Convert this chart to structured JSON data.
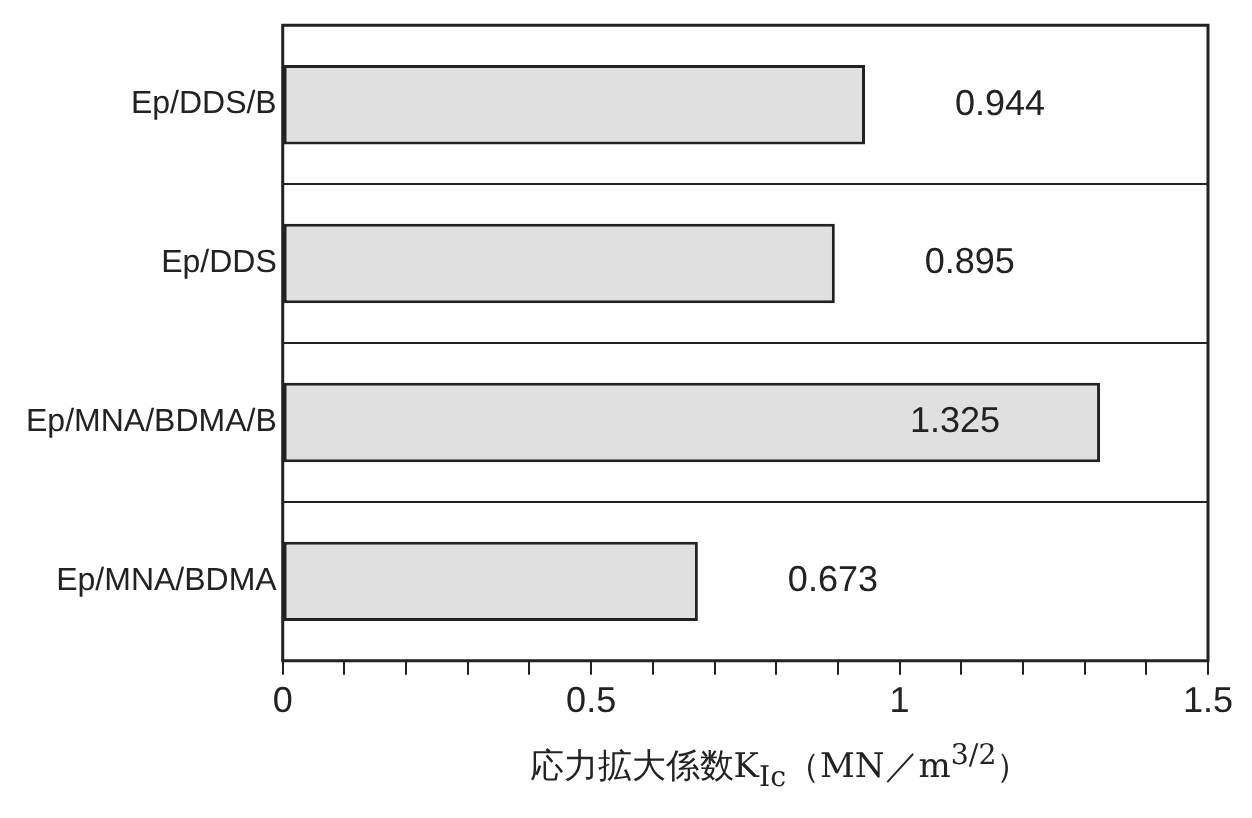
{
  "chart_data": {
    "type": "bar",
    "orientation": "horizontal",
    "xlabel": "応力拡大係数K$_{Ic}$（MN／m$^{3/2}$）",
    "categories": [
      "Ep/DDS/B",
      "Ep/DDS",
      "Ep/MNA/BDMA/B",
      "Ep/MNA/BDMA"
    ],
    "values": [
      0.944,
      0.895,
      1.325,
      0.673
    ],
    "color": "#e0e0e0",
    "xlim": [
      0,
      1.5
    ],
    "xticks": [
      0,
      {
        "value": 0.1,
        "label": null
      },
      {
        "value": 0.2,
        "label": null
      },
      {
        "value": 0.3,
        "label": null
      },
      {
        "value": 0.4,
        "label": null
      },
      0.5,
      {
        "value": 0.6,
        "label": null
      },
      {
        "value": 0.7,
        "label": null
      },
      {
        "value": 0.8,
        "label": null
      },
      {
        "value": 0.9,
        "label": null
      },
      1,
      {
        "value": 1.1,
        "label": null
      },
      {
        "value": 1.2,
        "label": null
      },
      {
        "value": 1.3,
        "label": null
      },
      {
        "value": 1.4,
        "label": null
      },
      1.5
    ],
    "grid": "y",
    "data_labels": true,
    "legend": false
  }
}
